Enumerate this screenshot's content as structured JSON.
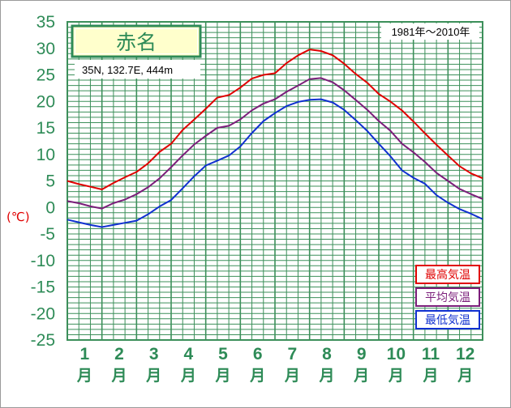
{
  "chart_data": {
    "type": "line",
    "title": "赤名",
    "subtitle": "35N, 132.7E, 444m",
    "period": "1981年～2010年",
    "ylabel": "(℃)",
    "xlabel": "",
    "months": [
      "1",
      "2",
      "3",
      "4",
      "5",
      "6",
      "7",
      "8",
      "9",
      "10",
      "11",
      "12"
    ],
    "month_unit": "月",
    "xlim": [
      0.5,
      12.5
    ],
    "ylim": [
      -25,
      35
    ],
    "yticks": [
      35,
      30,
      25,
      20,
      15,
      10,
      5,
      0,
      -5,
      -10,
      -15,
      -20,
      -25
    ],
    "grid": true,
    "legend_position": "bottom-right",
    "x": [
      0.5,
      0.83,
      1.17,
      1.5,
      1.83,
      2.17,
      2.5,
      2.83,
      3.17,
      3.5,
      3.83,
      4.17,
      4.5,
      4.83,
      5.17,
      5.5,
      5.83,
      6.17,
      6.5,
      6.83,
      7.17,
      7.5,
      7.83,
      8.17,
      8.5,
      8.83,
      9.17,
      9.5,
      9.83,
      10.17,
      10.5,
      10.83,
      11.17,
      11.5,
      11.83,
      12.17,
      12.5
    ],
    "series": [
      {
        "name": "最高気温",
        "color": "#e00000",
        "values": [
          5.0,
          4.4,
          3.9,
          3.4,
          4.6,
          5.7,
          6.7,
          8.3,
          10.5,
          12.0,
          14.6,
          16.6,
          18.6,
          20.7,
          21.2,
          22.6,
          24.3,
          25.0,
          25.3,
          27.2,
          28.7,
          29.8,
          29.5,
          28.7,
          27.1,
          25.2,
          23.5,
          21.4,
          20.0,
          18.3,
          16.2,
          14.0,
          11.8,
          9.8,
          7.8,
          6.4,
          5.5
        ]
      },
      {
        "name": "平均気温",
        "color": "#7b1e7a",
        "values": [
          1.2,
          0.8,
          0.2,
          -0.2,
          0.8,
          1.5,
          2.5,
          3.8,
          5.5,
          7.6,
          9.8,
          11.9,
          13.5,
          15.0,
          15.4,
          16.6,
          18.3,
          19.6,
          20.4,
          21.8,
          23.0,
          24.2,
          24.4,
          23.6,
          22.1,
          20.3,
          18.4,
          16.3,
          14.5,
          12.0,
          10.4,
          8.6,
          6.5,
          5.0,
          3.5,
          2.5,
          1.6
        ]
      },
      {
        "name": "最低気温",
        "color": "#1030d0",
        "values": [
          -2.3,
          -2.8,
          -3.3,
          -3.7,
          -3.3,
          -2.9,
          -2.5,
          -1.3,
          0.2,
          1.4,
          3.6,
          5.9,
          7.9,
          8.8,
          9.8,
          11.5,
          14.0,
          16.3,
          17.8,
          19.1,
          19.9,
          20.3,
          20.4,
          19.8,
          18.4,
          16.5,
          14.4,
          12.0,
          9.7,
          7.0,
          5.6,
          4.5,
          2.3,
          0.9,
          -0.3,
          -1.2,
          -2.2
        ]
      }
    ]
  },
  "colors": {
    "grid": "#3c8f5a",
    "axis_text": "#2e8b57",
    "title_box_fill": "#ffffcc"
  }
}
